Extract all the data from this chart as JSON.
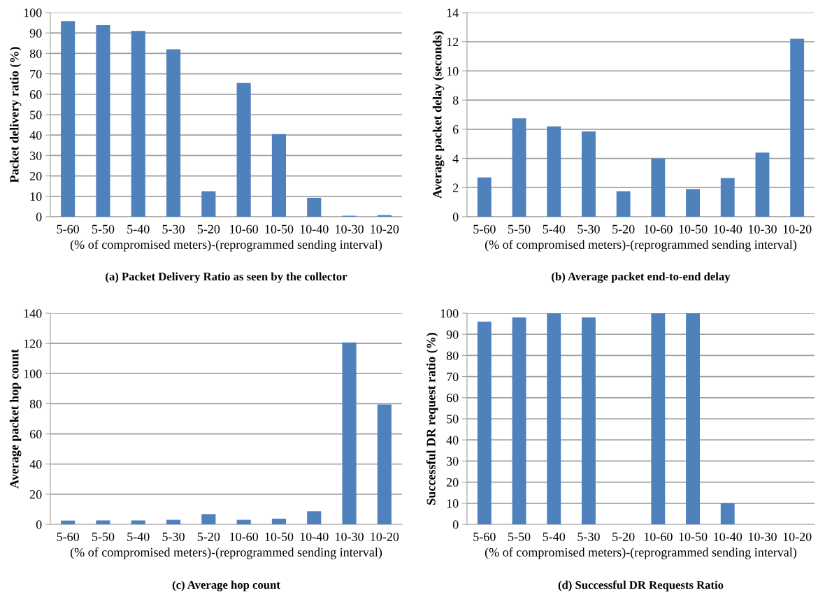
{
  "chart_data": [
    {
      "type": "bar",
      "categories": [
        "5-60",
        "5-50",
        "5-40",
        "5-30",
        "5-20",
        "10-60",
        "10-50",
        "10-40",
        "10-30",
        "10-20"
      ],
      "values": [
        95.8,
        93.8,
        91,
        82,
        12.5,
        65.5,
        40.5,
        9.3,
        0.5,
        0.8
      ],
      "color": "#4f81bd",
      "ylabel": "Packet delivery ratio (%)",
      "xlabel": "(% of compromised meters)-(reprogrammed sending interval)",
      "ylim": [
        0,
        100
      ],
      "yticks": [
        0,
        10,
        20,
        30,
        40,
        50,
        60,
        70,
        80,
        90,
        100
      ],
      "grid": "y",
      "annotations": [
        "(a) Packet Delivery Ratio as seen by the collector"
      ]
    },
    {
      "type": "bar",
      "categories": [
        "5-60",
        "5-50",
        "5-40",
        "5-30",
        "5-20",
        "10-60",
        "10-50",
        "10-40",
        "10-30",
        "10-20"
      ],
      "values": [
        2.7,
        6.75,
        6.2,
        5.85,
        1.75,
        4.0,
        1.9,
        2.65,
        4.4,
        12.2
      ],
      "color": "#4f81bd",
      "ylabel": "Average packet delay (seconds)",
      "xlabel": "(% of compromised meters)-(reprogrammed sending interval)",
      "ylim": [
        0,
        14
      ],
      "yticks": [
        0,
        2,
        4,
        6,
        8,
        10,
        12,
        14
      ],
      "grid": "y",
      "annotations": [
        "(b) Average packet end-to-end delay"
      ]
    },
    {
      "type": "bar",
      "categories": [
        "5-60",
        "5-50",
        "5-40",
        "5-30",
        "5-20",
        "10-60",
        "10-50",
        "10-40",
        "10-30",
        "10-20"
      ],
      "values": [
        2.5,
        2.6,
        2.6,
        3,
        6.8,
        3,
        3.8,
        8.7,
        120.7,
        79.5
      ],
      "color": "#4f81bd",
      "ylabel": "Average packet hop count",
      "xlabel": "(% of compromised meters)-(reprogrammed sending interval)",
      "ylim": [
        0,
        140
      ],
      "yticks": [
        0,
        20,
        40,
        60,
        80,
        100,
        120,
        140
      ],
      "grid": "y",
      "annotations": [
        "(c) Average hop count"
      ]
    },
    {
      "type": "bar",
      "categories": [
        "5-60",
        "5-50",
        "5-40",
        "5-30",
        "5-20",
        "10-60",
        "10-50",
        "10-40",
        "10-30",
        "10-20"
      ],
      "values": [
        96,
        98,
        100,
        98,
        0,
        100,
        100,
        10,
        0,
        0
      ],
      "color": "#4f81bd",
      "ylabel": "Successful DR request ratio (%)",
      "xlabel": "(% of compromised meters)-(reprogrammed sending interval)",
      "ylim": [
        0,
        100
      ],
      "yticks": [
        0,
        10,
        20,
        30,
        40,
        50,
        60,
        70,
        80,
        90,
        100
      ],
      "grid": "y",
      "annotations": [
        "(d) Successful DR Requests Ratio"
      ]
    }
  ]
}
